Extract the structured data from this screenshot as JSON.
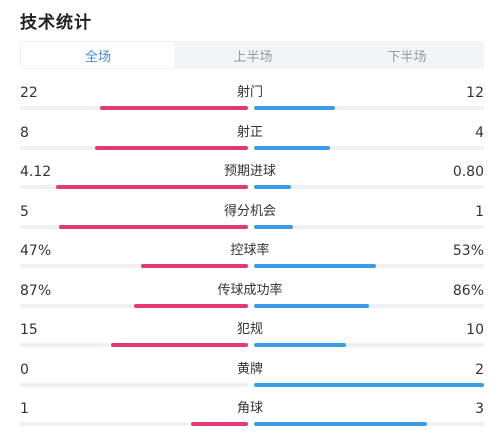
{
  "page": {
    "title": "技术统计"
  },
  "tabs": [
    {
      "label": "全场",
      "active": true
    },
    {
      "label": "上半场",
      "active": false
    },
    {
      "label": "下半场",
      "active": false
    }
  ],
  "colors": {
    "home": "#e33a73",
    "away": "#3a9ce6",
    "active_tab": "#3a8dde"
  },
  "stats": [
    {
      "label": "射门",
      "home": "22",
      "away": "12",
      "home_fraction": 0.65,
      "away_fraction": 0.35
    },
    {
      "label": "射正",
      "home": "8",
      "away": "4",
      "home_fraction": 0.67,
      "away_fraction": 0.33
    },
    {
      "label": "预期进球",
      "home": "4.12",
      "away": "0.80",
      "home_fraction": 0.84,
      "away_fraction": 0.16
    },
    {
      "label": "得分机会",
      "home": "5",
      "away": "1",
      "home_fraction": 0.83,
      "away_fraction": 0.17
    },
    {
      "label": "控球率",
      "home": "47%",
      "away": "53%",
      "home_fraction": 0.47,
      "away_fraction": 0.53
    },
    {
      "label": "传球成功率",
      "home": "87%",
      "away": "86%",
      "home_fraction": 0.5,
      "away_fraction": 0.5
    },
    {
      "label": "犯规",
      "home": "15",
      "away": "10",
      "home_fraction": 0.6,
      "away_fraction": 0.4
    },
    {
      "label": "黄牌",
      "home": "0",
      "away": "2",
      "home_fraction": 0.0,
      "away_fraction": 1.0
    },
    {
      "label": "角球",
      "home": "1",
      "away": "3",
      "home_fraction": 0.25,
      "away_fraction": 0.75
    }
  ]
}
